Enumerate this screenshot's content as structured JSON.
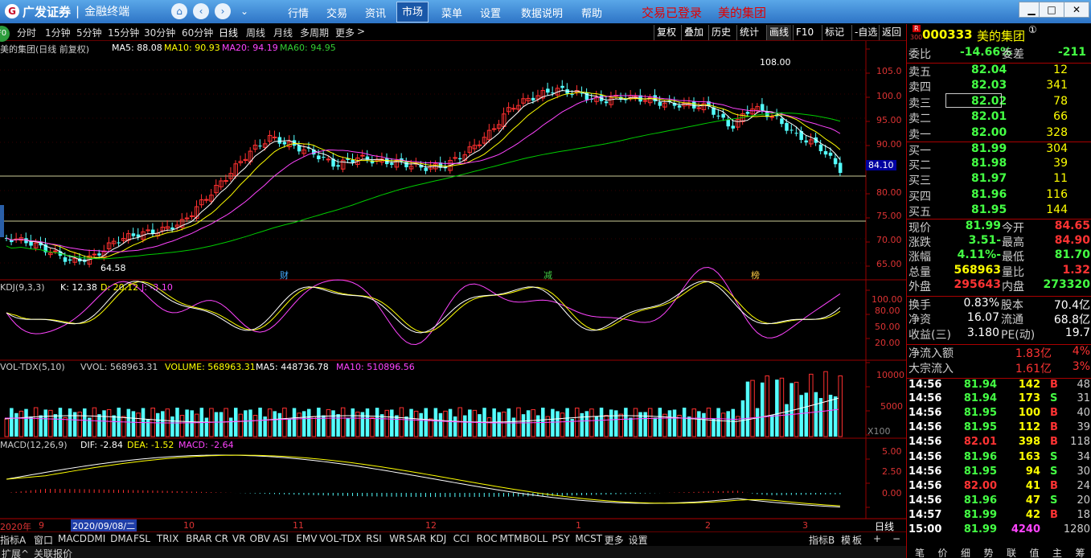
{
  "title_bar": {
    "brand": "广发证券",
    "product": "金融终端",
    "menus": [
      "行情",
      "交易",
      "资讯",
      "市场",
      "菜单",
      "设置",
      "数据说明",
      "帮助"
    ],
    "active_menu": "市场",
    "login_status": "交易已登录",
    "stock_name": "美的集团",
    "nav_icons": [
      "home-icon",
      "back-icon",
      "forward-icon",
      "collapse-icon"
    ]
  },
  "period_bar": {
    "badge": "F0",
    "periods": [
      "分时",
      "1分钟",
      "5分钟",
      "15分钟",
      "30分钟",
      "60分钟",
      "日线",
      "周线",
      "月线",
      "多周期",
      "更多"
    ],
    "active": "日线",
    "more_arrow": ">"
  },
  "tools": [
    "复权",
    "叠加",
    "历史",
    "统计",
    "画线",
    "F10",
    "标记",
    "-自选",
    "返回"
  ],
  "main_chart": {
    "title": "美的集团(日线 前复权)",
    "ma5": "MA5: 88.08",
    "ma10": "MA10: 90.93",
    "ma20": "MA20: 94.19",
    "ma60": "MA60: 94.95",
    "high_label": "108.00",
    "low_label": "64.58",
    "current_price_tag": "84.10",
    "axis": [
      "105.0",
      "100.0",
      "95.00",
      "90.00",
      "80.00",
      "75.00",
      "70.00",
      "65.00"
    ],
    "events": [
      "财",
      "减",
      "榜"
    ],
    "colors": {
      "up": "#ff3030",
      "down": "#54ffff",
      "ma5": "#ffffff",
      "ma10": "#ffff00",
      "ma20": "#ff44ff",
      "ma60": "#00cc00"
    }
  },
  "kdj": {
    "title": "KDJ(9,3,3)",
    "k": "K: 12.38",
    "d": "D: 20.12",
    "j": "J: -3.10",
    "axis": [
      "100.00",
      "80.00",
      "50.00",
      "20.00"
    ]
  },
  "vol": {
    "title": "VOL-TDX(5,10)",
    "vvol": "VVOL: 568963.31",
    "volume": "VOLUME: 568963.31",
    "ma5": "MA5: 448736.78",
    "ma10": "MA10: 510896.56",
    "axis": [
      "10000",
      "5000"
    ],
    "unit": "X100"
  },
  "macd": {
    "title": "MACD(12,26,9)",
    "dif": "DIF: -2.84",
    "dea": "DEA: -1.52",
    "macd": "MACD: -2.64",
    "axis": [
      "5.00",
      "2.50",
      "0.00"
    ]
  },
  "date_axis": {
    "year": "2020年",
    "labels": [
      "9",
      "10",
      "11",
      "12",
      "1",
      "2",
      "3"
    ],
    "cursor_date": "2020/09/08/二",
    "mode": "日线"
  },
  "indicator_tabs": [
    "指标A",
    "窗口",
    "MACD",
    "DMI",
    "DMA",
    "FSL",
    "TRIX",
    "BRAR",
    "CR",
    "VR",
    "OBV",
    "ASI",
    "EMV",
    "VOL-TDX",
    "RSI",
    "WR",
    "SAR",
    "KDJ",
    "CCI",
    "ROC",
    "MTM",
    "BOLL",
    "PSY",
    "MCST",
    "更多",
    "设置"
  ],
  "indicator_tabs_right": [
    "指标B",
    "模",
    "板",
    "+",
    "−"
  ],
  "bottom_bar": [
    "扩展^",
    "关联报价"
  ],
  "quote": {
    "market": "R",
    "market_sub": "300",
    "code": "000333",
    "name": "美的集团",
    "mark": "①",
    "weibi_label": "委比",
    "weibi": "-14.66%",
    "weicha_label": "委差",
    "weicha": "-211",
    "asks": [
      {
        "label": "卖五",
        "price": "82.04",
        "vol": "12"
      },
      {
        "label": "卖四",
        "price": "82.03",
        "vol": "341"
      },
      {
        "label": "卖三",
        "price": "82.02",
        "vol": "78"
      },
      {
        "label": "卖二",
        "price": "82.01",
        "vol": "66"
      },
      {
        "label": "卖一",
        "price": "82.00",
        "vol": "328"
      }
    ],
    "bids": [
      {
        "label": "买一",
        "price": "81.99",
        "vol": "304"
      },
      {
        "label": "买二",
        "price": "81.98",
        "vol": "39"
      },
      {
        "label": "买三",
        "price": "81.97",
        "vol": "11"
      },
      {
        "label": "买四",
        "price": "81.96",
        "vol": "116"
      },
      {
        "label": "买五",
        "price": "81.95",
        "vol": "144"
      }
    ],
    "stats": [
      [
        "现价",
        "81.99",
        "今开",
        "84.65"
      ],
      [
        "涨跌",
        "-3.51",
        "最高",
        "84.90"
      ],
      [
        "涨幅",
        "-4.11%",
        "最低",
        "81.70"
      ],
      [
        "总量",
        "568963",
        "量比",
        "1.32"
      ],
      [
        "外盘",
        "295643",
        "内盘",
        "273320"
      ]
    ],
    "fund": [
      [
        "换手",
        "0.83%",
        "股本",
        "70.4亿"
      ],
      [
        "净资",
        "16.07",
        "流通",
        "68.8亿"
      ],
      [
        "收益(三)",
        "3.180",
        "PE(动)",
        "19.7"
      ]
    ],
    "flow": [
      [
        "净流入额",
        "1.83亿",
        "4%"
      ],
      [
        "大宗流入",
        "1.61亿",
        "3%"
      ]
    ],
    "ticks": [
      [
        "14:56",
        "81.94",
        "142",
        "B",
        "48"
      ],
      [
        "14:56",
        "81.94",
        "173",
        "S",
        "31"
      ],
      [
        "14:56",
        "81.95",
        "100",
        "B",
        "40"
      ],
      [
        "14:56",
        "81.95",
        "112",
        "B",
        "39"
      ],
      [
        "14:56",
        "82.01",
        "398",
        "B",
        "118"
      ],
      [
        "14:56",
        "81.96",
        "163",
        "S",
        "34"
      ],
      [
        "14:56",
        "81.95",
        "94",
        "S",
        "30"
      ],
      [
        "14:56",
        "82.00",
        "41",
        "B",
        "24"
      ],
      [
        "14:56",
        "81.96",
        "47",
        "S",
        "20"
      ],
      [
        "14:57",
        "81.99",
        "42",
        "B",
        "18"
      ],
      [
        "15:00",
        "81.99",
        "4240",
        "",
        "1280"
      ]
    ],
    "tabs": [
      "笔",
      "价",
      "细",
      "势",
      "联",
      "值",
      "主",
      "筹"
    ]
  }
}
